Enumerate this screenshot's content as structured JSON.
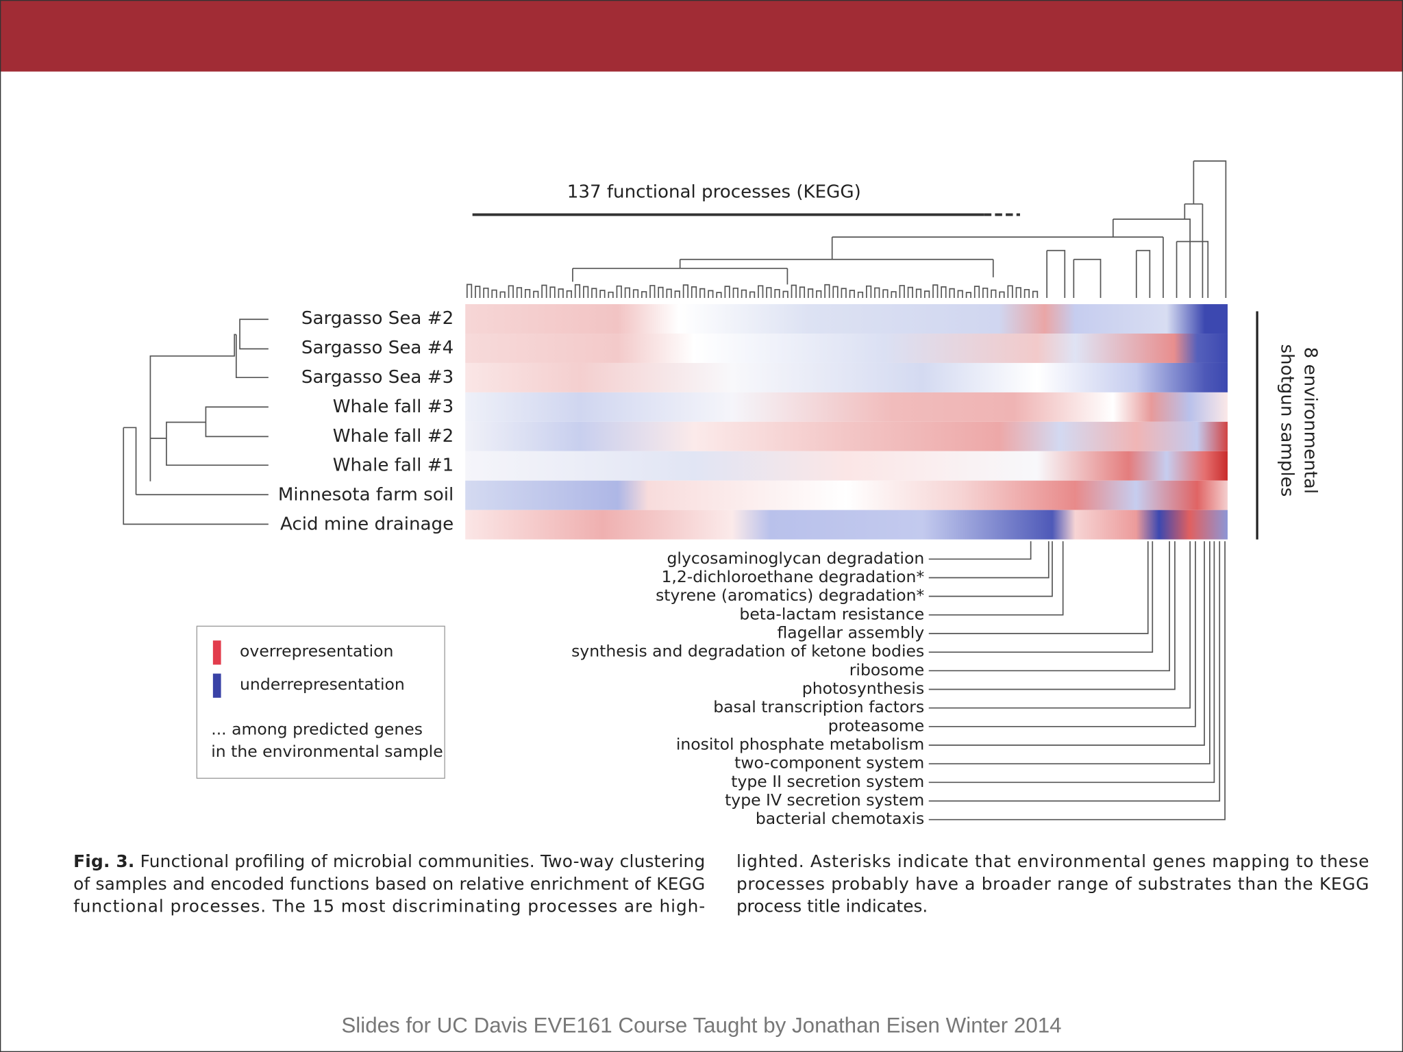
{
  "figure": {
    "title": "137 functional processes (KEGG)",
    "side_label": [
      "8 environmental",
      "shotgun samples"
    ],
    "samples": [
      "Sargasso Sea #2",
      "Sargasso Sea #4",
      "Sargasso Sea #3",
      "Whale fall #3",
      "Whale fall #2",
      "Whale fall #1",
      "Minnesota farm soil",
      "Acid mine drainage"
    ],
    "legend": {
      "items": [
        "overrepresentation",
        "underrepresentation"
      ],
      "note": [
        "... among predicted genes",
        "in the environmental sample"
      ]
    },
    "processes": [
      "glycosaminoglycan degradation",
      "1,2-dichloroethane degradation*",
      "styrene (aromatics) degradation*",
      "beta-lactam resistance",
      "flagellar assembly",
      "synthesis and degradation of ketone bodies",
      "ribosome",
      "photosynthesis",
      "basal transcription factors",
      "proteasome",
      "inositol phosphate metabolism",
      "two-component system",
      "type II secretion system",
      "type IV secretion system",
      "bacterial chemotaxis"
    ]
  },
  "caption": {
    "label": "Fig. 3.",
    "left": [
      "Functional profiling of microbial communities. Two-way clustering",
      "of samples and encoded functions based on relative enrichment of KEGG",
      "functional processes. The 15 most discriminating processes are high-"
    ],
    "right": [
      "lighted. Asterisks indicate that environmental genes mapping to these",
      "processes probably have a broader range of substrates than the KEGG",
      "process title indicates."
    ]
  },
  "footer": "Slides for UC Davis EVE161 Course Taught by Jonathan Eisen Winter 2014"
}
